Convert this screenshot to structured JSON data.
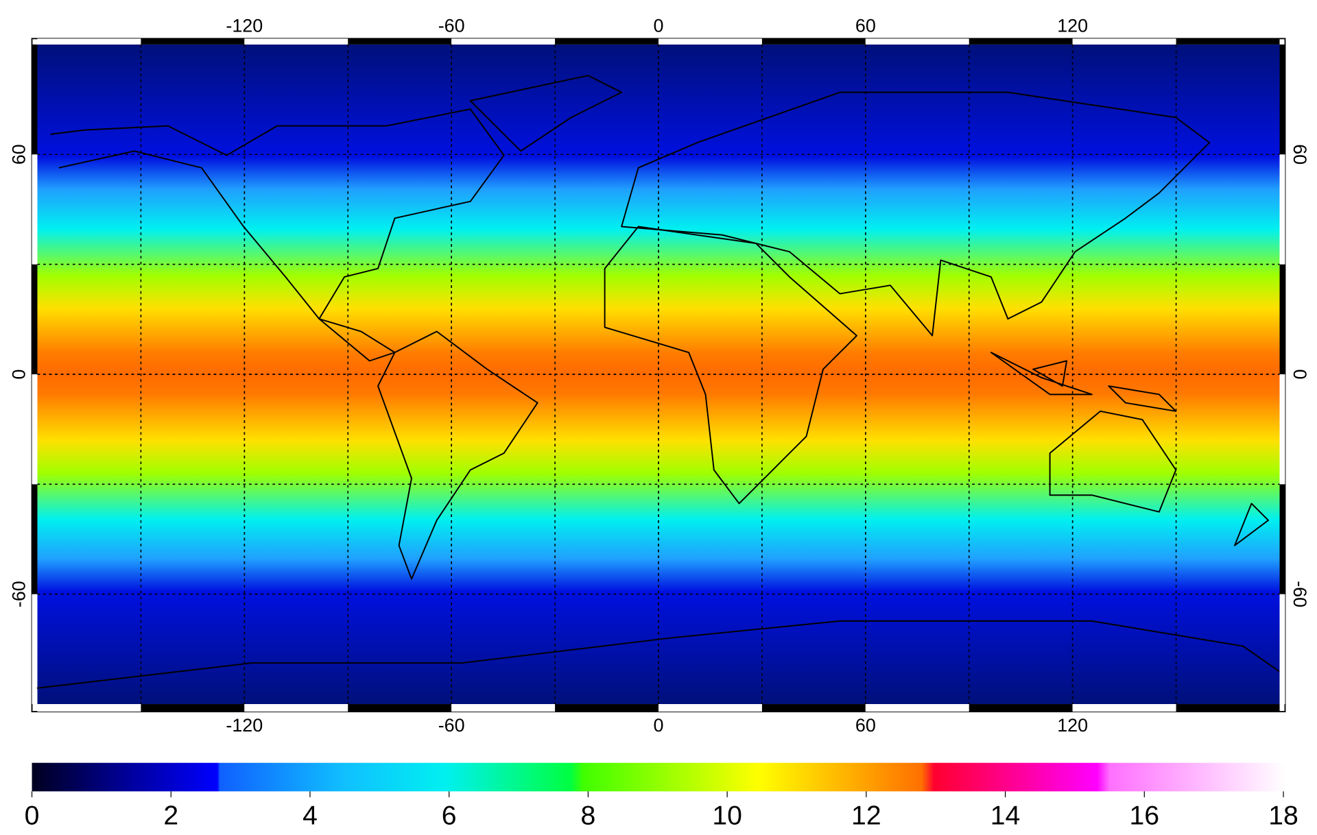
{
  "map": {
    "xlim": [
      -180,
      180
    ],
    "ylim": [
      -90,
      90
    ],
    "xticks": [
      -120,
      -60,
      0,
      60,
      120
    ],
    "yticks": [
      60,
      0,
      -60
    ]
  },
  "colorbar": {
    "range": [
      0,
      18
    ],
    "ticks": [
      0,
      2,
      4,
      6,
      8,
      10,
      12,
      14,
      16,
      18
    ]
  }
}
